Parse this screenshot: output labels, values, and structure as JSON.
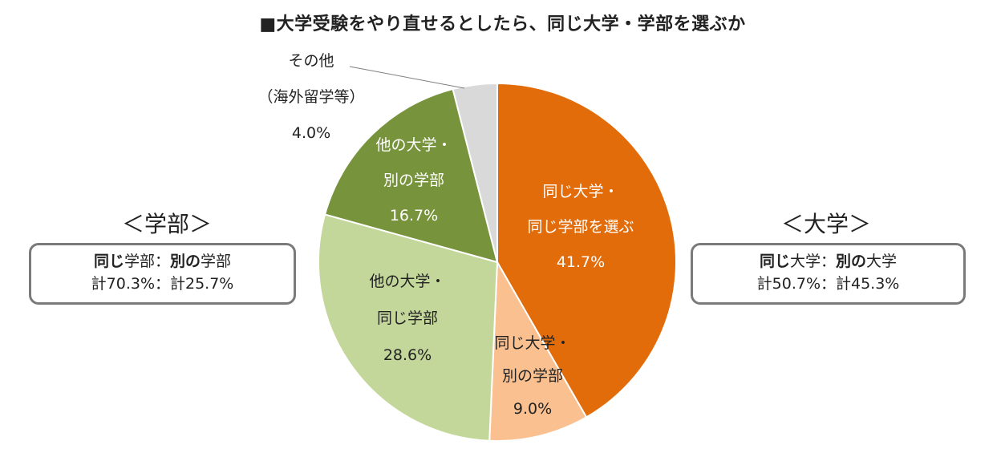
{
  "title": "■大学受験をやり直せるとしたら、同じ大学・学部を選ぶか",
  "chart_data": {
    "type": "pie",
    "start_angle_deg": 0,
    "direction": "clockwise",
    "slices": [
      {
        "label_lines": [
          "同じ大学・",
          "同じ学部を選ぶ"
        ],
        "value": 41.7,
        "value_text": "41.7%",
        "color": "#E36C0A",
        "label_color": "#ffffff"
      },
      {
        "label_lines": [
          "同じ大学・",
          "別の学部"
        ],
        "value": 9.0,
        "value_text": "9.0%",
        "color": "#FAC090",
        "label_color": "#222222"
      },
      {
        "label_lines": [
          "他の大学・",
          "同じ学部"
        ],
        "value": 28.6,
        "value_text": "28.6%",
        "color": "#C4D79B",
        "label_color": "#222222"
      },
      {
        "label_lines": [
          "他の大学・",
          "別の学部"
        ],
        "value": 16.7,
        "value_text": "16.7%",
        "color": "#77933C",
        "label_color": "#ffffff"
      },
      {
        "label_lines": [
          "その他",
          "（海外留学等）"
        ],
        "value": 4.0,
        "value_text": "4.0%",
        "color": "#D9D9D9",
        "label_color": "#222222"
      }
    ]
  },
  "summary_faculty": {
    "heading": "＜学部＞",
    "same_label": "同じ",
    "faculty_word": "学部",
    "separator": "：",
    "other_label": "別の",
    "line2": "計70.3%：計25.7%"
  },
  "summary_university": {
    "heading": "＜大学＞",
    "same_label": "同じ",
    "univ_word": "大学",
    "separator": "：",
    "other_label": "別の",
    "line2": "計50.7%：計45.3%"
  }
}
